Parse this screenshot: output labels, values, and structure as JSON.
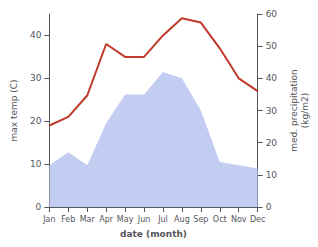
{
  "chart_data": {
    "type": "line",
    "xlabel": "date (month)",
    "ylabel": "max temp (C)",
    "y2label": "med. precipitation\n(kg/m2)",
    "categories": [
      "Jan",
      "Feb",
      "Mar",
      "Apr",
      "May",
      "Jun",
      "Jul",
      "Aug",
      "Sep",
      "Oct",
      "Nov",
      "Dec"
    ],
    "series": [
      {
        "type": "area",
        "axis": "y2",
        "color": "#b8c4f0",
        "values": [
          13,
          17,
          13,
          26,
          35,
          35,
          42,
          40,
          30,
          14,
          13,
          12
        ]
      },
      {
        "type": "line",
        "color": "#c0392b",
        "values": [
          19,
          21,
          26,
          38,
          35,
          35,
          40,
          44,
          43,
          37,
          30,
          27
        ]
      }
    ],
    "ylim": [
      0,
      45
    ],
    "yticks": [
      0,
      10,
      20,
      30,
      40
    ],
    "y2lim": [
      0,
      60
    ],
    "y2ticks": [
      0,
      10,
      20,
      30,
      40,
      50,
      60
    ],
    "grid": false
  }
}
